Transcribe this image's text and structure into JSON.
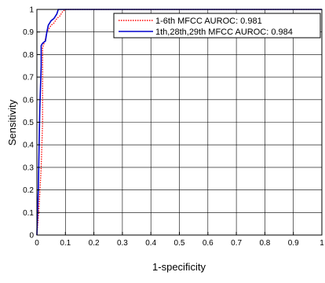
{
  "chart_data": {
    "type": "line",
    "xlabel": "1-specificity",
    "ylabel": "Sensitivity",
    "xlim": [
      0,
      1
    ],
    "ylim": [
      0,
      1
    ],
    "xticks": [
      "0",
      "0.1",
      "0.2",
      "0.3",
      "0.4",
      "0.5",
      "0.6",
      "0.7",
      "0.8",
      "0.9",
      "1"
    ],
    "yticks": [
      "0",
      "0.1",
      "0.2",
      "0.3",
      "0.4",
      "0.5",
      "0.6",
      "0.7",
      "0.8",
      "0.9",
      "1"
    ],
    "grid": true,
    "legend_position": "top-right",
    "series": [
      {
        "name": "1-6th MFCC AUROC: 0.981",
        "color": "#ff0000",
        "line_style": "dotted",
        "x": [
          0,
          0.005,
          0.01,
          0.015,
          0.02,
          0.02,
          0.025,
          0.03,
          0.035,
          0.04,
          0.045,
          0.05,
          0.06,
          0.07,
          0.08,
          0.09,
          0.1,
          1
        ],
        "y": [
          0,
          0.08,
          0.18,
          0.3,
          0.5,
          0.83,
          0.85,
          0.87,
          0.9,
          0.91,
          0.92,
          0.93,
          0.94,
          0.96,
          0.97,
          0.99,
          1,
          1
        ]
      },
      {
        "name": "1th,28th,29th MFCC AUROC: 0.984",
        "color": "#0000cc",
        "line_style": "solid",
        "x": [
          0,
          0.005,
          0.01,
          0.015,
          0.015,
          0.02,
          0.03,
          0.035,
          0.04,
          0.05,
          0.06,
          0.065,
          0.07,
          0.075,
          0.08,
          1
        ],
        "y": [
          0,
          0.2,
          0.55,
          0.75,
          0.84,
          0.85,
          0.86,
          0.9,
          0.93,
          0.95,
          0.96,
          0.97,
          0.98,
          1,
          1,
          1
        ]
      }
    ]
  }
}
